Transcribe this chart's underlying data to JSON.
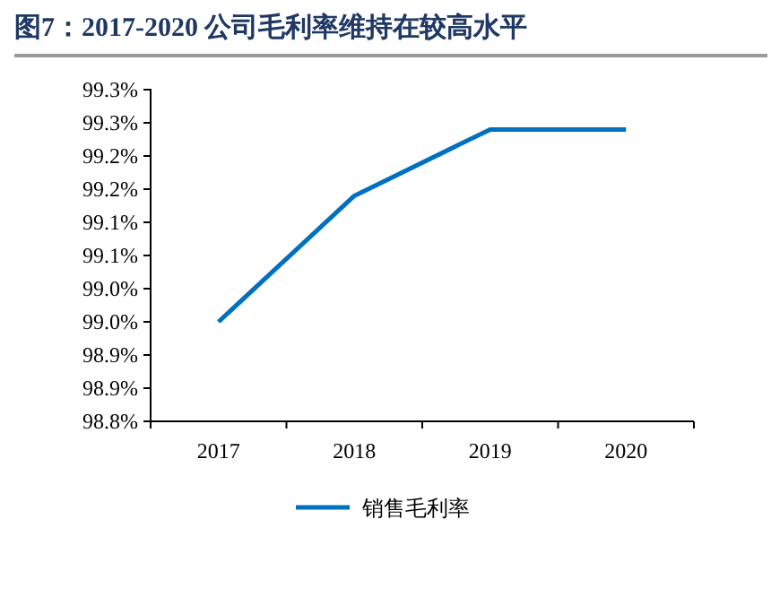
{
  "chart_data": {
    "type": "line",
    "title": "图7：2017-2020 公司毛利率维持在较高水平",
    "categories": [
      "2017",
      "2018",
      "2019",
      "2020"
    ],
    "series": [
      {
        "name": "销售毛利率",
        "color": "#0070c0",
        "values": [
          98.95,
          99.14,
          99.24,
          99.24
        ]
      }
    ],
    "ylim": [
      98.8,
      99.3
    ],
    "yticks": [
      {
        "value": 98.8,
        "label": "98.8%"
      },
      {
        "value": 98.85,
        "label": "98.9%"
      },
      {
        "value": 98.9,
        "label": "98.9%"
      },
      {
        "value": 98.95,
        "label": "99.0%"
      },
      {
        "value": 99.0,
        "label": "99.0%"
      },
      {
        "value": 99.05,
        "label": "99.1%"
      },
      {
        "value": 99.1,
        "label": "99.1%"
      },
      {
        "value": 99.15,
        "label": "99.2%"
      },
      {
        "value": 99.2,
        "label": "99.2%"
      },
      {
        "value": 99.25,
        "label": "99.3%"
      },
      {
        "value": 99.3,
        "label": "99.3%"
      }
    ],
    "grid": false,
    "legend": "bottom",
    "marker": "none",
    "line_style": "solid"
  }
}
